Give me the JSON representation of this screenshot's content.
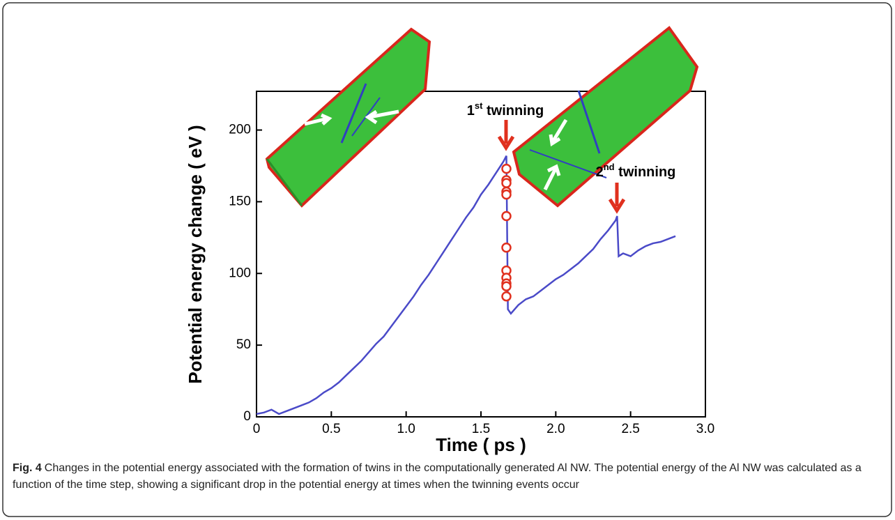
{
  "chart_data": {
    "type": "line",
    "xlabel": "Time ( ps )",
    "ylabel": "Potential energy change ( eV )",
    "xlim": [
      0,
      3
    ],
    "ylim": [
      0,
      227
    ],
    "xticks": [
      0,
      0.5,
      {
        "value": 1,
        "label": "1.0"
      },
      1.5,
      {
        "value": 2,
        "label": "2.0"
      },
      2.5,
      {
        "value": 3,
        "label": "3.0"
      }
    ],
    "yticks": [
      0,
      50,
      100,
      150,
      200
    ],
    "series": [
      {
        "color": "#4a4ac8",
        "x": [
          0,
          0.05,
          0.1,
          0.15,
          0.2,
          0.25,
          0.3,
          0.35,
          0.4,
          0.45,
          0.5,
          0.55,
          0.6,
          0.65,
          0.7,
          0.75,
          0.8,
          0.85,
          0.9,
          0.95,
          1.0,
          1.05,
          1.1,
          1.15,
          1.2,
          1.25,
          1.3,
          1.35,
          1.4,
          1.45,
          1.5,
          1.55,
          1.6,
          1.65,
          1.67,
          1.68,
          1.7,
          1.75,
          1.8,
          1.85,
          1.9,
          1.95,
          2.0,
          2.05,
          2.1,
          2.15,
          2.2,
          2.25,
          2.3,
          2.35,
          2.4,
          2.41,
          2.42,
          2.45,
          2.5,
          2.55,
          2.6,
          2.65,
          2.7,
          2.75,
          2.8
        ],
        "values": [
          2,
          3,
          5,
          2,
          4,
          6,
          8,
          10,
          13,
          17,
          20,
          24,
          29,
          34,
          39,
          45,
          51,
          56,
          63,
          70,
          77,
          84,
          92,
          99,
          107,
          115,
          123,
          131,
          139,
          146,
          155,
          162,
          170,
          178,
          182,
          75,
          72,
          78,
          82,
          84,
          88,
          92,
          96,
          99,
          103,
          107,
          112,
          117,
          124,
          130,
          137,
          140,
          112,
          114,
          112,
          116,
          119,
          121,
          122,
          124,
          126
        ]
      },
      {
        "color": "#e0301e",
        "markers": true,
        "x": [
          1.67,
          1.67,
          1.67,
          1.67,
          1.67,
          1.67,
          1.67,
          1.67,
          1.67,
          1.67,
          1.67,
          1.67
        ],
        "values": [
          173,
          165,
          163,
          157,
          155,
          140,
          118,
          102,
          97,
          93,
          91,
          84
        ]
      }
    ],
    "annotations": [
      {
        "number": "1",
        "suffix": "st",
        "text": " twinning"
      },
      {
        "number": "2",
        "suffix": "nd",
        "text": " twinning"
      }
    ],
    "caption": {
      "label": "Fig. 4",
      "text": "Changes in the potential energy associated with the formation of twins in the computationally generated Al NW. The potential energy of the Al NW was calculated as a function of the time step, showing a significant drop in the potential energy at times when the twinning events occur"
    }
  }
}
